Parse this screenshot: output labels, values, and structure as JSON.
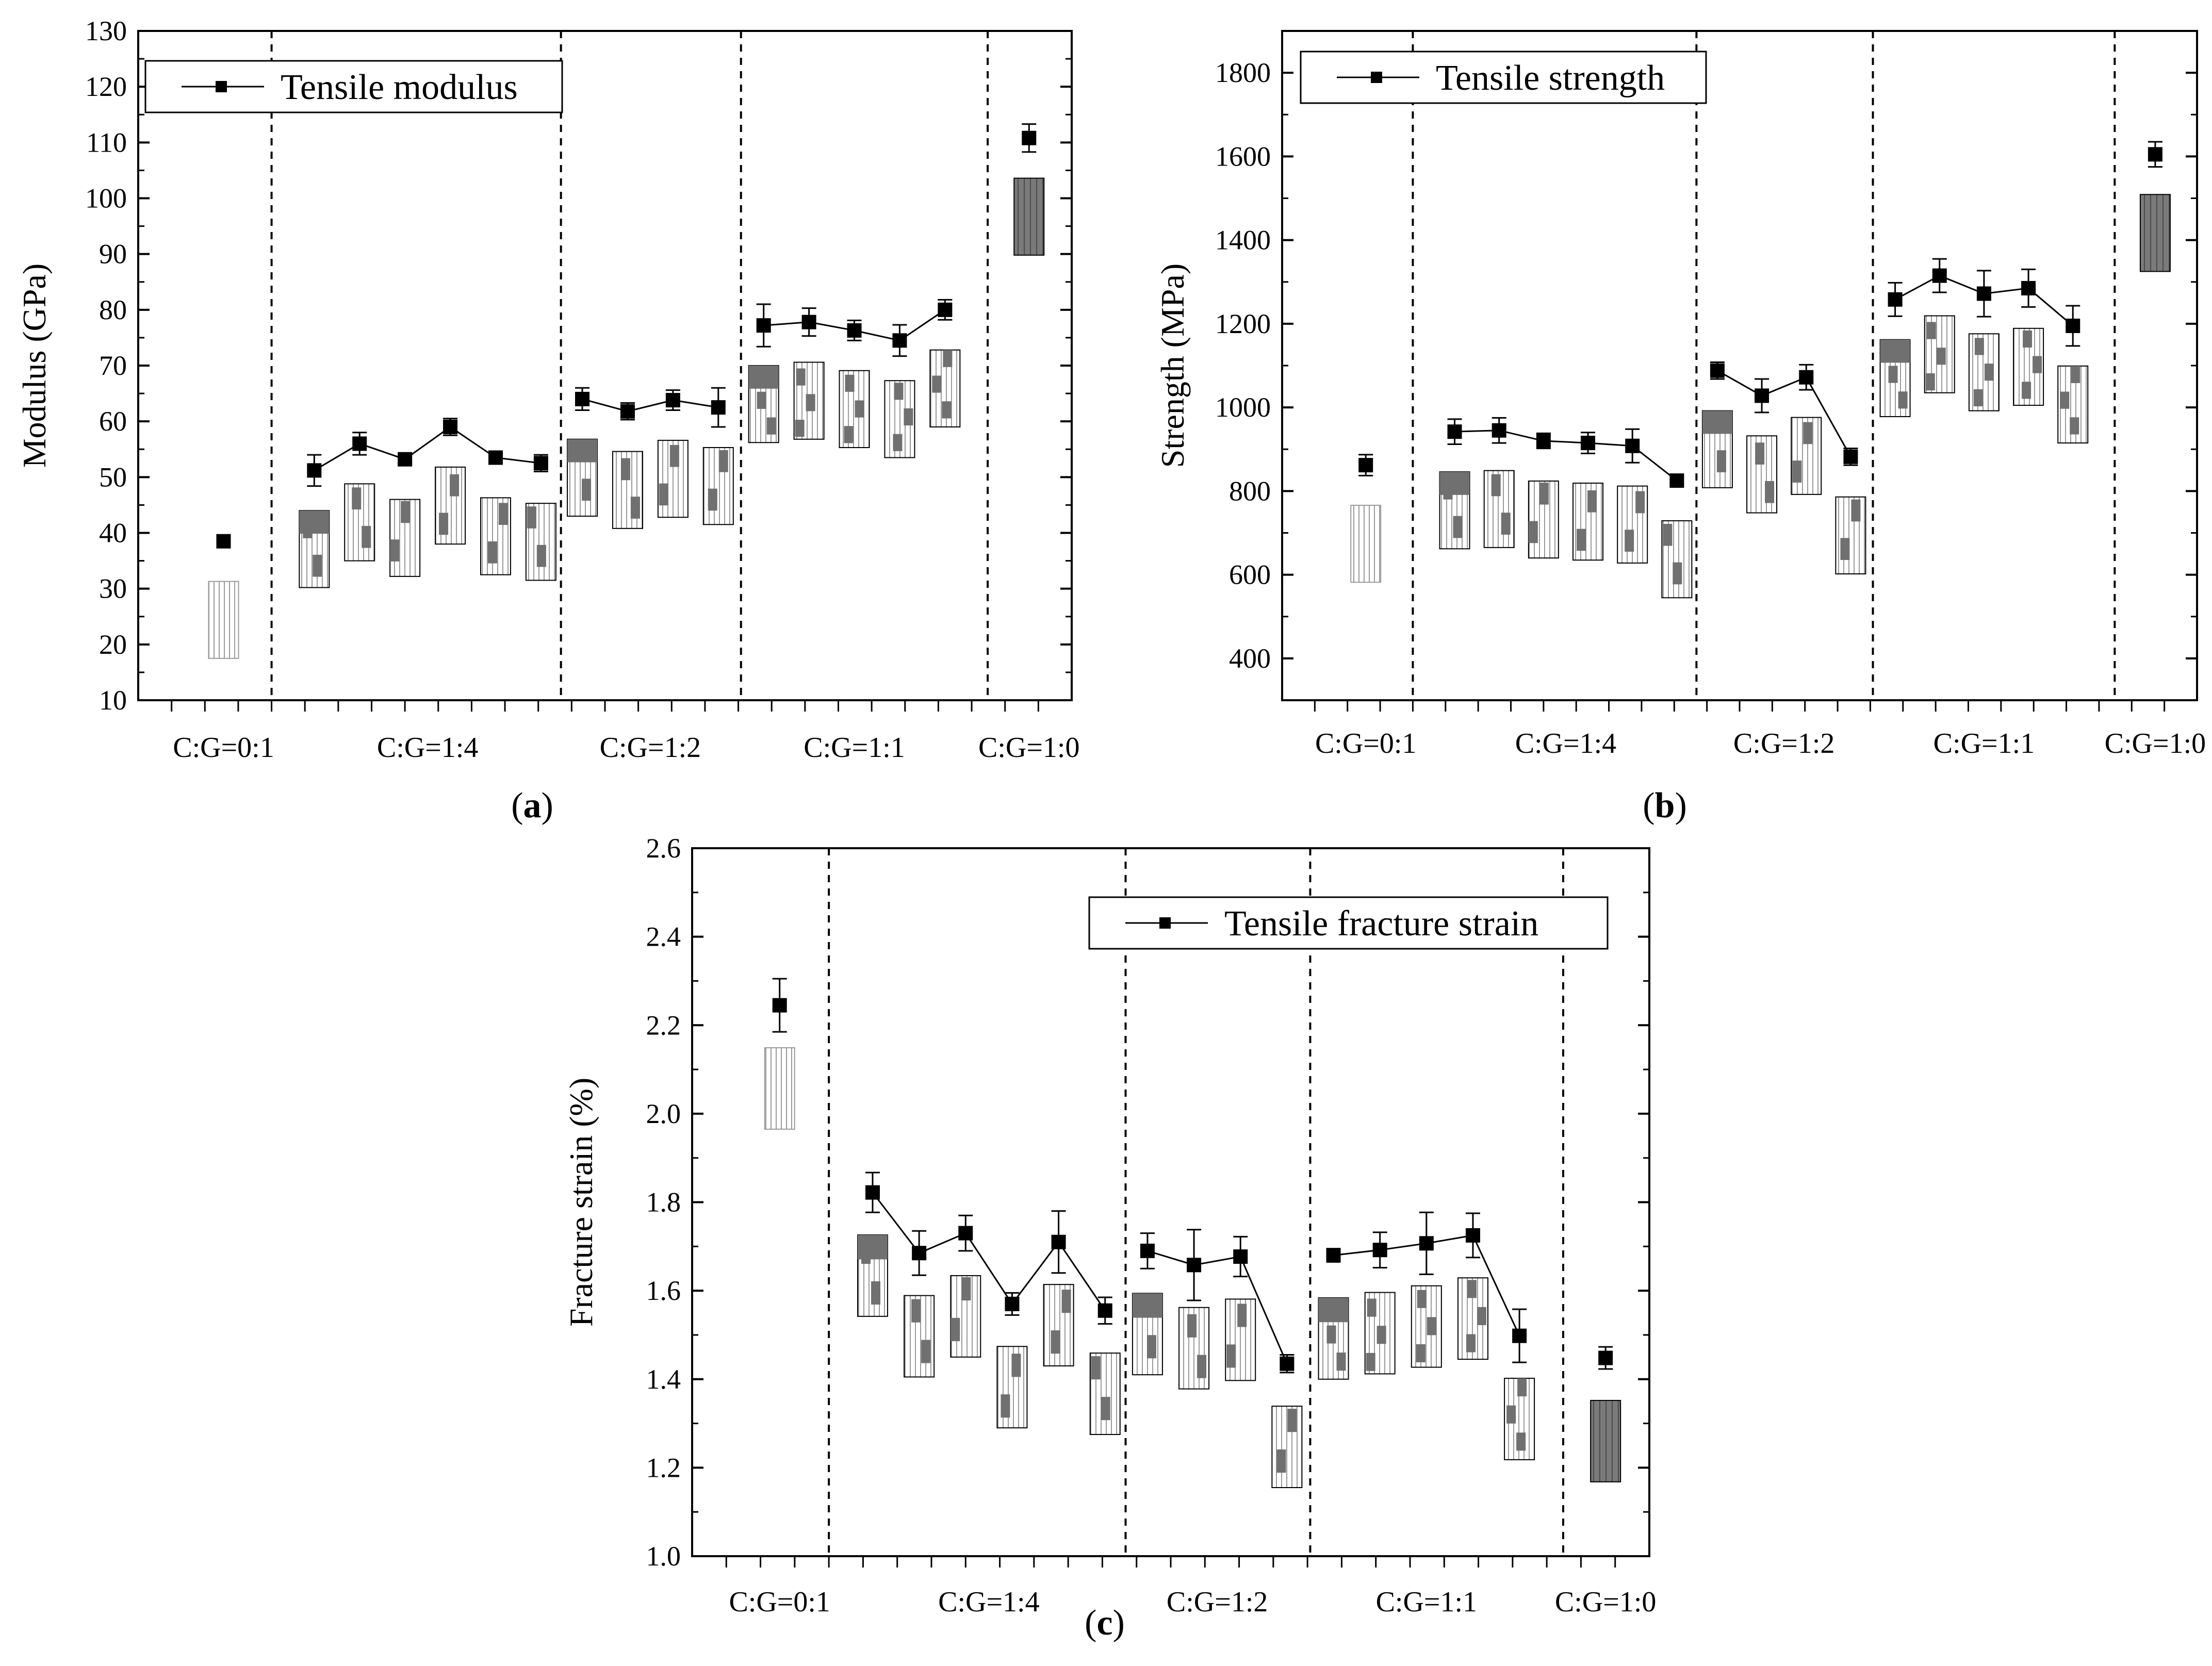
{
  "chart_data": [
    {
      "id": "a",
      "type": "line",
      "panel_label": "a",
      "ylabel": "Modulus (GPa)",
      "xlabel": "",
      "ylim": [
        10,
        130
      ],
      "yticks": [
        10,
        20,
        30,
        40,
        50,
        60,
        70,
        80,
        90,
        100,
        110,
        120,
        130
      ],
      "legend": "Tensile modulus",
      "legend_position": "top-left",
      "group_labels": [
        "C:G=0:1",
        "C:G=1:4",
        "C:G=1:2",
        "C:G=1:1",
        "C:G=1:0"
      ],
      "points": [
        {
          "group": 0,
          "x": 0.64,
          "y": 38.5,
          "err": 0
        },
        {
          "group": 1,
          "x": 1.32,
          "y": 51.2,
          "err": 2.8
        },
        {
          "group": 1,
          "x": 1.66,
          "y": 56.0,
          "err": 2.0
        },
        {
          "group": 1,
          "x": 2.0,
          "y": 53.2,
          "err": 0.8
        },
        {
          "group": 1,
          "x": 2.34,
          "y": 59.0,
          "err": 1.5
        },
        {
          "group": 1,
          "x": 2.68,
          "y": 53.5,
          "err": 0.8
        },
        {
          "group": 1,
          "x": 3.02,
          "y": 52.5,
          "err": 1.5
        },
        {
          "group": 2,
          "x": 3.33,
          "y": 64.0,
          "err": 2.0
        },
        {
          "group": 2,
          "x": 3.67,
          "y": 61.8,
          "err": 1.5
        },
        {
          "group": 2,
          "x": 4.01,
          "y": 63.8,
          "err": 1.8
        },
        {
          "group": 2,
          "x": 4.35,
          "y": 62.5,
          "err": 3.5
        },
        {
          "group": 3,
          "x": 4.69,
          "y": 77.2,
          "err": 3.8
        },
        {
          "group": 3,
          "x": 5.03,
          "y": 77.8,
          "err": 2.5
        },
        {
          "group": 3,
          "x": 5.37,
          "y": 76.3,
          "err": 1.8
        },
        {
          "group": 3,
          "x": 5.71,
          "y": 74.5,
          "err": 2.8
        },
        {
          "group": 3,
          "x": 6.05,
          "y": 80.0,
          "err": 1.8
        },
        {
          "group": 4,
          "x": 6.68,
          "y": 110.8,
          "err": 2.5
        }
      ],
      "series_segments": [
        [
          1,
          6
        ],
        [
          7,
          10
        ],
        [
          11,
          15
        ]
      ]
    },
    {
      "id": "b",
      "type": "line",
      "panel_label": "b",
      "ylabel": "Strength (MPa)",
      "xlabel": "",
      "ylim": [
        300,
        1900
      ],
      "yticks": [
        400,
        600,
        800,
        1000,
        1200,
        1400,
        1600,
        1800
      ],
      "legend": "Tensile strength",
      "legend_position": "top-left",
      "group_labels": [
        "C:G=0:1",
        "C:G=1:4",
        "C:G=1:2",
        "C:G=1:1",
        "C:G=1:0"
      ],
      "points": [
        {
          "group": 0,
          "x": 0.64,
          "y": 862,
          "err": 25
        },
        {
          "group": 1,
          "x": 1.32,
          "y": 942,
          "err": 30
        },
        {
          "group": 1,
          "x": 1.66,
          "y": 945,
          "err": 30
        },
        {
          "group": 1,
          "x": 2.0,
          "y": 920,
          "err": 18
        },
        {
          "group": 1,
          "x": 2.34,
          "y": 915,
          "err": 25
        },
        {
          "group": 1,
          "x": 2.68,
          "y": 908,
          "err": 40
        },
        {
          "group": 1,
          "x": 3.02,
          "y": 825,
          "err": 10
        },
        {
          "group": 2,
          "x": 3.33,
          "y": 1088,
          "err": 20
        },
        {
          "group": 2,
          "x": 3.67,
          "y": 1028,
          "err": 40
        },
        {
          "group": 2,
          "x": 4.01,
          "y": 1072,
          "err": 30
        },
        {
          "group": 2,
          "x": 4.35,
          "y": 882,
          "err": 20
        },
        {
          "group": 3,
          "x": 4.69,
          "y": 1258,
          "err": 40
        },
        {
          "group": 3,
          "x": 5.03,
          "y": 1315,
          "err": 40
        },
        {
          "group": 3,
          "x": 5.37,
          "y": 1272,
          "err": 55
        },
        {
          "group": 3,
          "x": 5.71,
          "y": 1285,
          "err": 45
        },
        {
          "group": 3,
          "x": 6.05,
          "y": 1195,
          "err": 48
        },
        {
          "group": 4,
          "x": 6.68,
          "y": 1605,
          "err": 30
        }
      ],
      "series_segments": [
        [
          1,
          6
        ],
        [
          7,
          10
        ],
        [
          11,
          15
        ]
      ]
    },
    {
      "id": "c",
      "type": "line",
      "panel_label": "c",
      "ylabel": "Fracture strain (%)",
      "xlabel": "",
      "ylim": [
        1.0,
        2.6
      ],
      "yticks": [
        1.0,
        1.2,
        1.4,
        1.6,
        1.8,
        2.0,
        2.2,
        2.4,
        2.6
      ],
      "legend": "Tensile fracture strain",
      "legend_position": "top-right",
      "group_labels": [
        "C:G=0:1",
        "C:G=1:4",
        "C:G=1:2",
        "C:G=1:1",
        "C:G=1:0"
      ],
      "points": [
        {
          "group": 0,
          "x": 0.64,
          "y": 2.245,
          "err": 0.06
        },
        {
          "group": 1,
          "x": 1.32,
          "y": 1.822,
          "err": 0.045
        },
        {
          "group": 1,
          "x": 1.66,
          "y": 1.685,
          "err": 0.05
        },
        {
          "group": 1,
          "x": 2.0,
          "y": 1.73,
          "err": 0.04
        },
        {
          "group": 1,
          "x": 2.34,
          "y": 1.57,
          "err": 0.025
        },
        {
          "group": 1,
          "x": 2.68,
          "y": 1.71,
          "err": 0.07
        },
        {
          "group": 1,
          "x": 3.02,
          "y": 1.555,
          "err": 0.03
        },
        {
          "group": 2,
          "x": 3.33,
          "y": 1.69,
          "err": 0.04
        },
        {
          "group": 2,
          "x": 3.67,
          "y": 1.658,
          "err": 0.08
        },
        {
          "group": 2,
          "x": 4.01,
          "y": 1.677,
          "err": 0.045
        },
        {
          "group": 2,
          "x": 4.35,
          "y": 1.435,
          "err": 0.02
        },
        {
          "group": 3,
          "x": 4.69,
          "y": 1.68,
          "err": 0.015
        },
        {
          "group": 3,
          "x": 5.03,
          "y": 1.692,
          "err": 0.04
        },
        {
          "group": 3,
          "x": 5.37,
          "y": 1.707,
          "err": 0.07
        },
        {
          "group": 3,
          "x": 5.71,
          "y": 1.725,
          "err": 0.05
        },
        {
          "group": 3,
          "x": 6.05,
          "y": 1.498,
          "err": 0.06
        },
        {
          "group": 4,
          "x": 6.68,
          "y": 1.448,
          "err": 0.025
        }
      ],
      "series_segments": [
        [
          1,
          6
        ],
        [
          7,
          10
        ],
        [
          11,
          15
        ]
      ]
    }
  ]
}
